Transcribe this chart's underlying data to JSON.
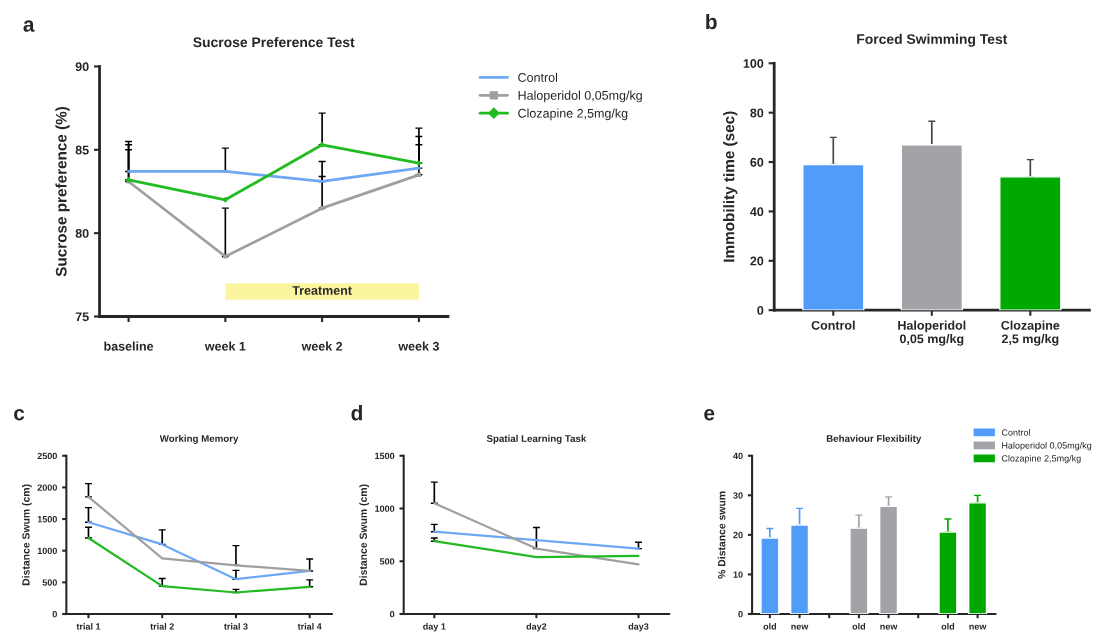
{
  "chart_data": [
    {
      "type": "line",
      "title": "Sucrose Preference Test",
      "ylabel": "Sucrose preference (%)",
      "annotations": [
        "a"
      ],
      "categories": [
        "baseline",
        "week 1",
        "week 2",
        "week 3"
      ],
      "ylim": [
        75,
        90
      ],
      "yticks": [
        75,
        80,
        85,
        90
      ],
      "legend": "right",
      "series": [
        {
          "name": "Control",
          "color": "#6ea8f5",
          "marker": "none",
          "values": [
            83.7,
            83.7,
            83.1,
            83.9
          ],
          "errors": [
            [
              83.7,
              85.5
            ],
            [
              83.7,
              85.1
            ],
            [
              83.1,
              84.3
            ],
            [
              83.9,
              86.3
            ]
          ]
        },
        {
          "name": "Haloperidol 0,05mg/kg",
          "color": "#a0a0a0",
          "marker": "square",
          "values": [
            83.1,
            78.6,
            81.5,
            83.5
          ],
          "errors": [
            [
              83.1,
              85.0
            ],
            [
              78.6,
              81.5
            ],
            [
              81.5,
              83.4
            ],
            [
              83.5,
              85.8
            ]
          ]
        },
        {
          "name": "Clozapine 2,5mg/kg",
          "color": "#22bb22",
          "marker": "diamond",
          "values": [
            83.2,
            82.0,
            85.3,
            84.2
          ],
          "errors": [
            [
              83.2,
              85.3
            ],
            null,
            [
              85.3,
              87.2
            ],
            [
              84.2,
              85.3
            ]
          ]
        }
      ],
      "bands": [
        {
          "axis": "x",
          "from": "week 1",
          "to": "week 3",
          "label": "Treatment",
          "color": "#fbf5a0"
        }
      ]
    },
    {
      "type": "bar",
      "title": "Forced Swimming Test",
      "ylabel": "Immobility time (sec)",
      "annotations": [
        "b"
      ],
      "categories": [
        "Control",
        "Haloperidol\n0,05 mg/kg",
        "Clozapine\n2,5 mg/kg"
      ],
      "ylim": [
        0,
        100
      ],
      "yticks": [
        0,
        20,
        40,
        60,
        80,
        100
      ],
      "values": [
        59,
        67,
        54
      ],
      "colors": [
        "#519cf9",
        "#a3a3a7",
        "#00a800"
      ],
      "errors": [
        [
          59,
          70
        ],
        [
          67,
          76.5
        ],
        [
          54,
          61
        ]
      ]
    },
    {
      "type": "line",
      "title": "Working Memory",
      "ylabel": "Distance Swum (cm)",
      "annotations": [
        "c"
      ],
      "categories": [
        "trial 1",
        "trial 2",
        "trial 3",
        "trial 4"
      ],
      "ylim": [
        0,
        2500
      ],
      "yticks": [
        0,
        500,
        1000,
        1500,
        2000,
        2500
      ],
      "series": [
        {
          "color": "#6ea8f5",
          "values": [
            1450,
            1100,
            550,
            680
          ],
          "errors": [
            [
              1450,
              1680
            ],
            [
              1100,
              1330
            ],
            [
              550,
              690
            ],
            null
          ]
        },
        {
          "color": "#a0a0a0",
          "values": [
            1850,
            880,
            770,
            680
          ],
          "errors": [
            [
              1850,
              2060
            ],
            null,
            [
              770,
              1080
            ],
            [
              680,
              870
            ]
          ]
        },
        {
          "color": "#22bb22",
          "values": [
            1200,
            440,
            340,
            430
          ],
          "errors": [
            [
              1200,
              1370
            ],
            [
              440,
              560
            ],
            [
              340,
              390
            ],
            [
              430,
              540
            ]
          ]
        }
      ]
    },
    {
      "type": "line",
      "title": "Spatial Learning Task",
      "ylabel": "Distance Swum (cm)",
      "annotations": [
        "d"
      ],
      "categories": [
        "day 1",
        "day2",
        "day3"
      ],
      "ylim": [
        0,
        1500
      ],
      "yticks": [
        0,
        500,
        1000,
        1500
      ],
      "series": [
        {
          "color": "#6ea8f5",
          "values": [
            780,
            700,
            620
          ],
          "errors": [
            [
              780,
              850
            ],
            null,
            [
              620,
              680
            ]
          ]
        },
        {
          "color": "#a0a0a0",
          "values": [
            1050,
            620,
            470
          ],
          "errors": [
            [
              1050,
              1250
            ],
            [
              620,
              820
            ],
            null
          ]
        },
        {
          "color": "#22bb22",
          "values": [
            690,
            540,
            550
          ],
          "errors": [
            [
              690,
              720
            ],
            null,
            null
          ]
        }
      ]
    },
    {
      "type": "bar",
      "title": "Behaviour Flexibility",
      "ylabel": "% Distance swum",
      "annotations": [
        "e"
      ],
      "categories": [
        "old",
        "new",
        null,
        "old",
        "new",
        null,
        "old",
        "new"
      ],
      "ylim": [
        0,
        40
      ],
      "yticks": [
        0,
        10,
        20,
        30,
        40
      ],
      "legend": "top right",
      "series": [
        {
          "name": "Control",
          "color": "#519cf9",
          "values": [
            19.2,
            22.5,
            null,
            null,
            null,
            null,
            null,
            null
          ],
          "errors": [
            [
              19.2,
              21.6
            ],
            [
              22.5,
              26.7
            ],
            null,
            null,
            null,
            null,
            null,
            null
          ]
        },
        {
          "name": "Haloperidol 0,05mg/kg",
          "color": "#a3a3a7",
          "values": [
            null,
            null,
            null,
            21.7,
            27.2,
            null,
            null,
            null
          ],
          "errors": [
            null,
            null,
            null,
            [
              21.7,
              25.0
            ],
            [
              27.2,
              29.6
            ],
            null,
            null,
            null
          ]
        },
        {
          "name": "Clozapine 2,5mg/kg",
          "color": "#00a800",
          "values": [
            null,
            null,
            null,
            null,
            null,
            null,
            20.7,
            28.1
          ],
          "errors": [
            null,
            null,
            null,
            null,
            null,
            null,
            [
              20.7,
              24.0
            ],
            [
              28.1,
              30.0
            ]
          ]
        }
      ]
    }
  ]
}
